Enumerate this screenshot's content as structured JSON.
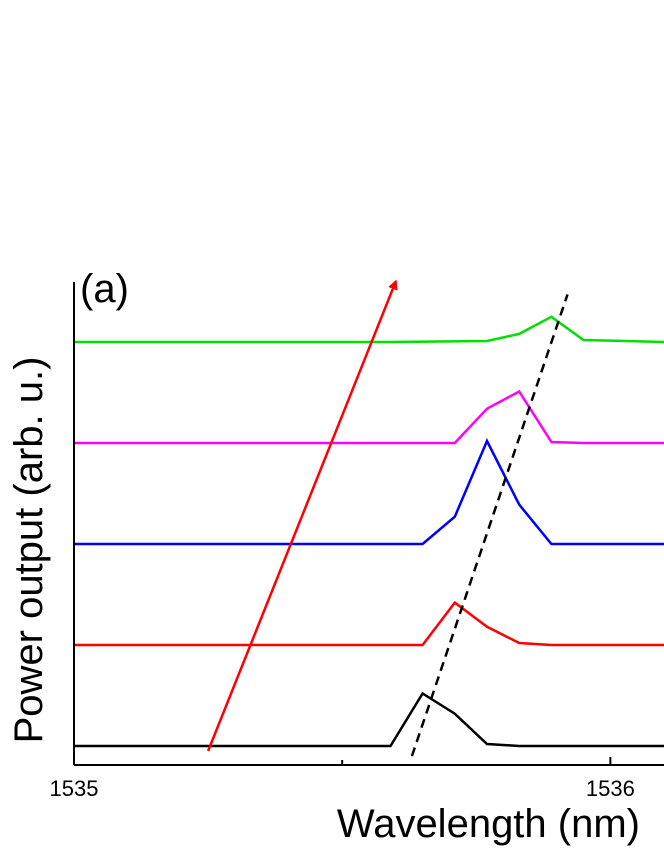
{
  "chart_data": {
    "type": "line",
    "panel_label": "(a)",
    "xlabel": "Wavelength (nm)",
    "ylabel": "Power output (arb. u.)",
    "xlim": [
      1535.0,
      1536.1
    ],
    "ylim": [
      -0.05,
      4.3
    ],
    "x_ticks": [
      1535,
      1536
    ],
    "x_tick_labels": [
      "1535",
      "1536"
    ],
    "x_minor_ticks": [
      1535.5
    ],
    "y_ticks_visible": false,
    "series": [
      {
        "color": "#000000",
        "x": [
          1535.0,
          1535.2,
          1535.4,
          1535.59,
          1535.65,
          1535.71,
          1535.77,
          1535.83,
          1536.1
        ],
        "y": [
          0.0,
          0.0,
          0.0,
          0.0,
          0.52,
          0.32,
          0.02,
          0.0,
          0.0
        ]
      },
      {
        "color": "#ff0000",
        "x": [
          1535.0,
          1535.2,
          1535.4,
          1535.65,
          1535.71,
          1535.77,
          1535.83,
          1535.89,
          1536.1
        ],
        "y": [
          1.0,
          1.0,
          1.0,
          1.0,
          1.42,
          1.18,
          1.02,
          1.0,
          1.0
        ]
      },
      {
        "color": "#0000ff",
        "x": [
          1535.0,
          1535.2,
          1535.4,
          1535.65,
          1535.71,
          1535.77,
          1535.83,
          1535.89,
          1536.1
        ],
        "y": [
          2.0,
          2.0,
          2.0,
          2.0,
          2.27,
          3.02,
          2.39,
          2.0,
          2.0
        ]
      },
      {
        "color": "#ff00ff",
        "x": [
          1535.0,
          1535.2,
          1535.4,
          1535.71,
          1535.77,
          1535.83,
          1535.89,
          1535.95,
          1536.1
        ],
        "y": [
          3.0,
          3.0,
          3.0,
          3.0,
          3.34,
          3.51,
          3.01,
          3.0,
          3.0
        ]
      },
      {
        "color": "#00e000",
        "x": [
          1535.0,
          1535.2,
          1535.4,
          1535.59,
          1535.77,
          1535.83,
          1535.89,
          1535.95,
          1536.1
        ],
        "y": [
          4.0,
          4.0,
          4.0,
          4.0,
          4.01,
          4.08,
          4.25,
          4.02,
          4.0
        ]
      }
    ],
    "annotations": [
      {
        "kind": "arrow",
        "color": "#ff0000",
        "from": [
          1535.25,
          -0.05
        ],
        "to": [
          1535.6,
          4.6
        ]
      },
      {
        "kind": "dashed-line",
        "color": "#000000",
        "from": [
          1535.63,
          -0.1
        ],
        "to": [
          1535.92,
          4.47
        ]
      }
    ]
  }
}
